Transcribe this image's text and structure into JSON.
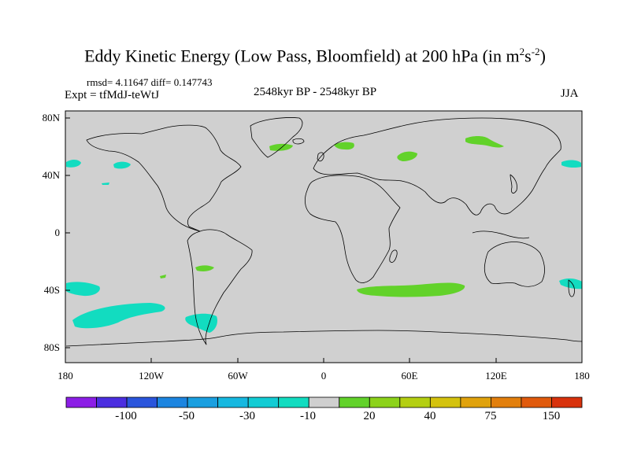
{
  "title": {
    "main": "Eddy Kinetic Energy (Low Pass, Bloomfield) at 200 hPa (in m",
    "sup1": "2",
    "mid": "s",
    "sup2": "-2",
    "end": ")"
  },
  "stats": "rmsd= 4.11647 diff= 0.147743",
  "experiment": "Expt = tfMdJ-teWtJ",
  "period": "2548kyr BP - 2548kyr BP",
  "season": "JJA",
  "axes": {
    "y_labels": [
      "80N",
      "40N",
      "0",
      "40S",
      "80S"
    ],
    "x_labels": [
      "180",
      "120W",
      "60W",
      "0",
      "60E",
      "120E",
      "180"
    ]
  },
  "colorbar": {
    "colors": [
      "#8c1ee6",
      "#4b2ee0",
      "#2a55dc",
      "#1c85e0",
      "#1a9fe0",
      "#16b8e0",
      "#12ccd4",
      "#12dcc0",
      "#cfcfcf",
      "#62d22a",
      "#8cd21a",
      "#b4cf12",
      "#d4c20e",
      "#e0a20c",
      "#e27f0c",
      "#e05a0c",
      "#d8320c"
    ],
    "labels": [
      "-100",
      "-50",
      "-30",
      "-10",
      "20",
      "40",
      "75",
      "150"
    ]
  }
}
